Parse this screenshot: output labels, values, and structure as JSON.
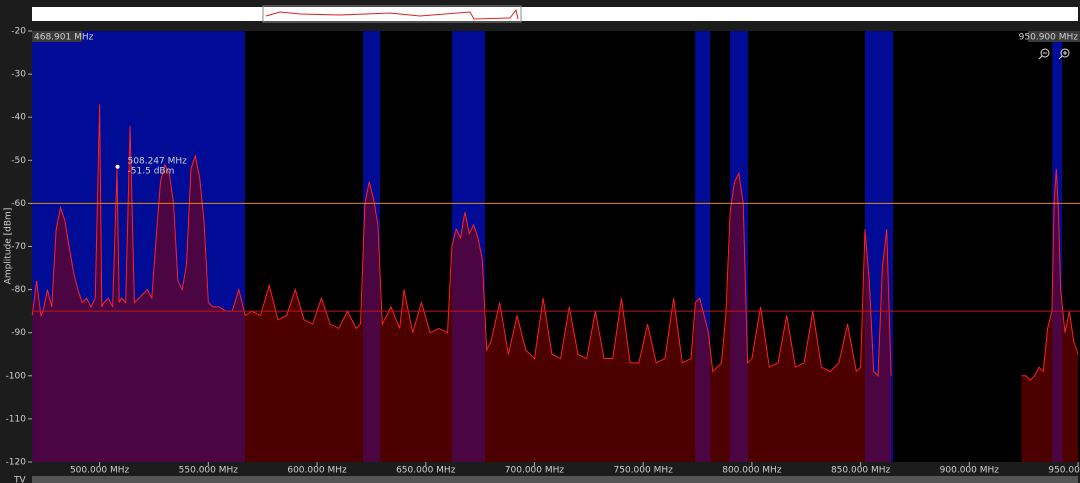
{
  "chart_data": {
    "type": "spectrum",
    "y_label": "Amplitude [dBm]",
    "start_label": "468.901 MHz",
    "end_label": "950.900 MHz",
    "bottom_label": "TV",
    "xlim": [
      468.901,
      950.9
    ],
    "ylim": [
      -120,
      -20
    ],
    "yticks": [
      -20,
      -30,
      -40,
      -50,
      -60,
      -70,
      -80,
      -90,
      -100,
      -110,
      -120
    ],
    "xticks": [
      {
        "value": 500,
        "label": "500.000 MHz"
      },
      {
        "value": 550,
        "label": "550.000 MHz"
      },
      {
        "value": 600,
        "label": "600.000 MHz"
      },
      {
        "value": 650,
        "label": "650.000 MHz"
      },
      {
        "value": 700,
        "label": "700.000 MHz"
      },
      {
        "value": 750,
        "label": "750.000 MHz"
      },
      {
        "value": 800,
        "label": "800.000 MHz"
      },
      {
        "value": 850,
        "label": "850.000 MHz"
      },
      {
        "value": 900,
        "label": "900.000 MHz"
      },
      {
        "value": 950,
        "label": "950.000 MHz"
      }
    ],
    "bands": [
      [
        468.901,
        566.9
      ],
      [
        621.2,
        629
      ],
      [
        662.1,
        677.3
      ],
      [
        773.9,
        780.8
      ],
      [
        790,
        798.2
      ],
      [
        852,
        864.9
      ],
      [
        938.1,
        942.7
      ]
    ],
    "band_color": "#0010c8",
    "thresholds": [
      {
        "value": -60,
        "color": "#e08a1e"
      },
      {
        "value": -85,
        "color": "#c01818"
      }
    ],
    "marker": {
      "x": 508.247,
      "y": -51.5,
      "x_label": "508.247 MHz",
      "y_label": "-51.5 dBm"
    },
    "series": [
      {
        "color": "#ff2020",
        "x": [
          469,
          471,
          473,
          474,
          476,
          478,
          480,
          482,
          484,
          486,
          488,
          490,
          492,
          494,
          496,
          498,
          500,
          501,
          502,
          504,
          506,
          508,
          509,
          510,
          512,
          514,
          516,
          518,
          520,
          522,
          524,
          526,
          528,
          530,
          532,
          534,
          536,
          538,
          540,
          542,
          544,
          546,
          548,
          550,
          552,
          555,
          558,
          561,
          564,
          567,
          570,
          574,
          578,
          582,
          586,
          590,
          594,
          598,
          602,
          606,
          610,
          614,
          618,
          620,
          622,
          624,
          626,
          628,
          630,
          634,
          638,
          640,
          644,
          648,
          652,
          656,
          660,
          662,
          664,
          666,
          668,
          670,
          672,
          674,
          676,
          678,
          680,
          684,
          688,
          692,
          696,
          700,
          704,
          708,
          712,
          716,
          720,
          724,
          728,
          732,
          736,
          740,
          744,
          748,
          752,
          756,
          760,
          764,
          768,
          772,
          774,
          776,
          778,
          780,
          782,
          784,
          786,
          788,
          790,
          792,
          794,
          796,
          798,
          800,
          804,
          808,
          812,
          816,
          820,
          824,
          828,
          832,
          836,
          840,
          844,
          848,
          850,
          852,
          854,
          856,
          858,
          860,
          862,
          864,
          890,
          924,
          926,
          928,
          930,
          932,
          934,
          936,
          938,
          939,
          940,
          941,
          942,
          944,
          946,
          948,
          950
        ],
        "values": [
          -86,
          -78,
          -86,
          -85,
          -80,
          -84,
          -66,
          -61,
          -64,
          -70,
          -76,
          -80,
          -83,
          -82,
          -84,
          -82,
          -37,
          -84,
          -83,
          -82,
          -84,
          -52,
          -83,
          -82,
          -83,
          -42,
          -83,
          -82,
          -81,
          -80,
          -82,
          -68,
          -55,
          -51,
          -53,
          -60,
          -78,
          -80,
          -74,
          -52,
          -49,
          -54,
          -64,
          -83,
          -84,
          -84,
          -85,
          -85,
          -80,
          -86,
          -85,
          -86,
          -79,
          -87,
          -86,
          -80,
          -87,
          -88,
          -82,
          -88,
          -89,
          -85,
          -89,
          -88,
          -60,
          -55,
          -59,
          -65,
          -88,
          -84,
          -89,
          -80,
          -90,
          -83,
          -90,
          -89,
          -90,
          -70,
          -66,
          -68,
          -62,
          -67,
          -65,
          -68,
          -73,
          -94,
          -92,
          -83,
          -95,
          -86,
          -94,
          -96,
          -82,
          -95,
          -96,
          -84,
          -95,
          -96,
          -85,
          -96,
          -96,
          -82,
          -97,
          -97,
          -88,
          -97,
          -96,
          -82,
          -97,
          -96,
          -83,
          -82,
          -86,
          -90,
          -99,
          -98,
          -97,
          -86,
          -62,
          -55,
          -53,
          -60,
          -97,
          -96,
          -84,
          -98,
          -97,
          -86,
          -98,
          -97,
          -85,
          -98,
          -99,
          -97,
          -88,
          -99,
          -98,
          -66,
          -78,
          -99,
          -100,
          -75,
          -66,
          -100,
          null,
          -100,
          -100,
          -101,
          -100,
          -98,
          -99,
          -89,
          -85,
          -60,
          -52,
          -62,
          -80,
          -90,
          -85,
          -92,
          -95
        ]
      }
    ]
  }
}
